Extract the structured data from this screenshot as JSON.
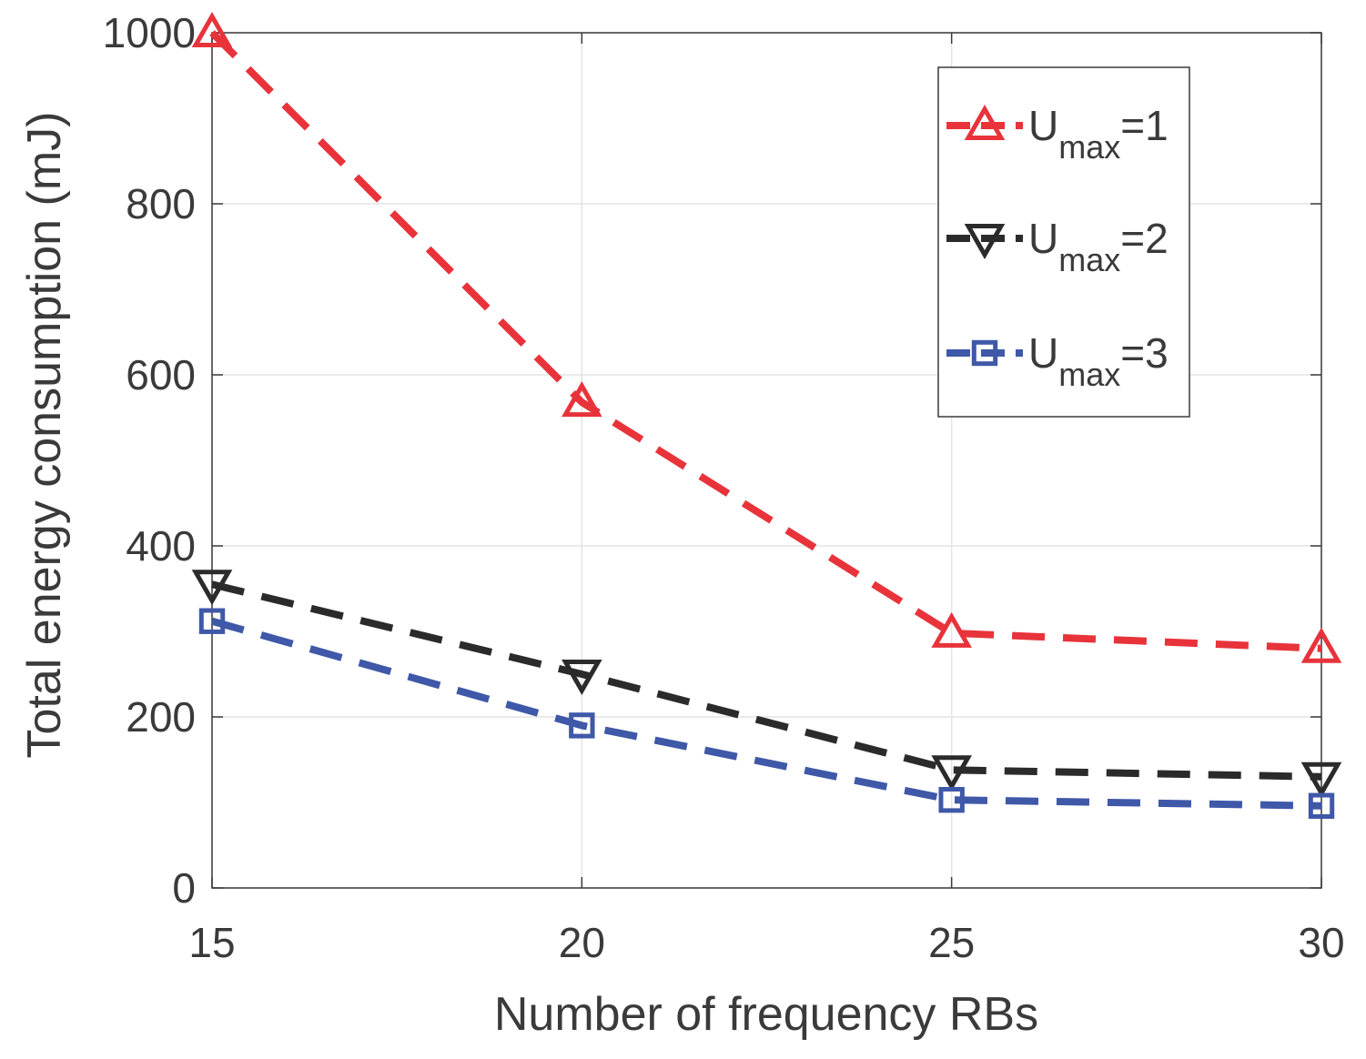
{
  "chart_data": {
    "type": "line",
    "title": "",
    "xlabel": "Number of frequency RBs",
    "ylabel": "Total energy consumption (mJ)",
    "x": [
      15,
      20,
      25,
      30
    ],
    "xlim": [
      15,
      30
    ],
    "ylim": [
      0,
      1000
    ],
    "xticks": [
      "15",
      "20",
      "25",
      "30"
    ],
    "yticks": [
      "0",
      "200",
      "400",
      "600",
      "800",
      "1000"
    ],
    "grid": true,
    "legend_position": "top-right",
    "series": [
      {
        "name": "U_max=1",
        "label_main": "U",
        "label_sub": "max",
        "label_tail": "=1",
        "values": [
          1000,
          568,
          298,
          280
        ],
        "color": "#e8333b",
        "marker": "triangle-up",
        "line_style": "dashed"
      },
      {
        "name": "U_max=2",
        "label_main": "U",
        "label_sub": "max",
        "label_tail": "=2",
        "values": [
          355,
          250,
          138,
          130
        ],
        "color": "#2b2b2b",
        "marker": "triangle-down",
        "line_style": "dashed"
      },
      {
        "name": "U_max=3",
        "label_main": "U",
        "label_sub": "max",
        "label_tail": "=3",
        "values": [
          312,
          190,
          103,
          96
        ],
        "color": "#3f58a8",
        "marker": "square",
        "line_style": "dashed"
      }
    ]
  }
}
